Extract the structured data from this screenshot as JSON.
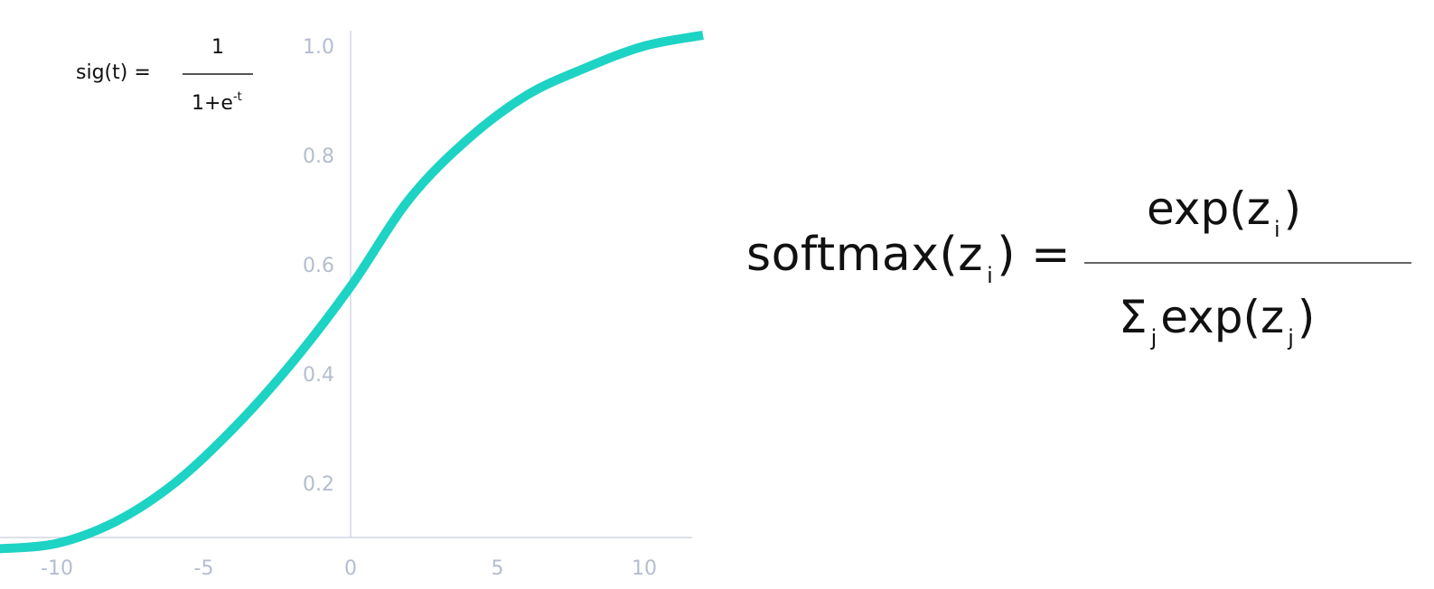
{
  "chart_data": {
    "type": "line",
    "function": "sigmoid",
    "title": "",
    "xlabel": "",
    "ylabel": "",
    "xlim": [
      -11.5,
      12
    ],
    "ylim": [
      0.08,
      1.02
    ],
    "x_ticks": [
      -10,
      -5,
      0,
      5,
      10
    ],
    "x_tick_labels": [
      "-10",
      "-5",
      "0",
      "5",
      "10"
    ],
    "y_ticks": [
      0.2,
      0.4,
      0.6,
      0.8,
      1.0
    ],
    "y_tick_labels": [
      "0.2",
      "0.4",
      "0.6",
      "0.8",
      "1.0"
    ],
    "series": [
      {
        "color": "#1dd3c4",
        "x": [
          -12,
          -10,
          -8,
          -6,
          -4,
          -2,
          0,
          2,
          4,
          6,
          8,
          10,
          12
        ],
        "y": [
          0.08,
          0.09,
          0.13,
          0.2,
          0.3,
          0.42,
          0.56,
          0.72,
          0.83,
          0.91,
          0.96,
          1.0,
          1.02
        ]
      }
    ],
    "grid": false,
    "axis_color": "#d2d6e3"
  },
  "sigmoid_formula": {
    "lhs": "sig(t) =",
    "numerator": "1",
    "denominator_base": "1+e",
    "denominator_exponent": "-t"
  },
  "softmax_formula": {
    "lhs_name": "softmax(z",
    "lhs_sub": "i",
    "lhs_close": ") =",
    "numerator_open": "exp(z",
    "numerator_sub": "i",
    "numerator_close": ")",
    "denominator_sum": "Σ",
    "denominator_sum_sub": "j",
    "denominator_open": "exp(z",
    "denominator_sub": "j",
    "denominator_close": ")"
  }
}
